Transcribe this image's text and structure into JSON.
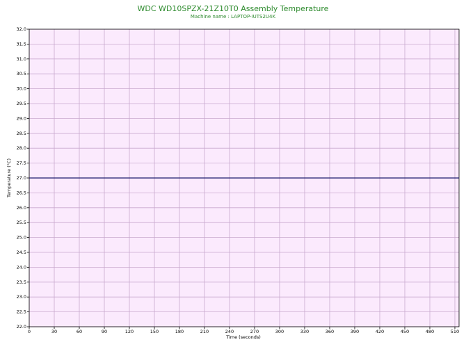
{
  "chart_data": {
    "type": "line",
    "title": "WDC WD10SPZX-21Z10T0 Assembly Temperature",
    "subtitle": "Machine name : LAPTOP-IUTS2U4K",
    "x_label": "Time (seconds)",
    "y_label": "Temperature (°C)",
    "x": [
      0,
      515
    ],
    "series": [
      {
        "name": "Assembly Temperature",
        "color": "#1c1c6e",
        "values": [
          27.0,
          27.0
        ]
      }
    ],
    "xlim": [
      0,
      515
    ],
    "xticks": [
      0,
      30,
      60,
      90,
      120,
      150,
      180,
      210,
      240,
      270,
      300,
      330,
      360,
      390,
      420,
      450,
      480,
      510
    ],
    "ylim": [
      22,
      32
    ],
    "yticks": [
      {
        "value": 22,
        "label": "22.0"
      },
      {
        "value": 22.5,
        "label": "22.5"
      },
      {
        "value": 23,
        "label": "23.0"
      },
      {
        "value": 23.5,
        "label": "23.5"
      },
      {
        "value": 24,
        "label": "24.0"
      },
      {
        "value": 24.5,
        "label": "24.5"
      },
      {
        "value": 25,
        "label": "25.0"
      },
      {
        "value": 25.5,
        "label": "25.5"
      },
      {
        "value": 26,
        "label": "26.0"
      },
      {
        "value": 26.5,
        "label": "26.5"
      },
      {
        "value": 27,
        "label": "27.0"
      },
      {
        "value": 27.5,
        "label": "27.5"
      },
      {
        "value": 28,
        "label": "28.0"
      },
      {
        "value": 28.5,
        "label": "28.5"
      },
      {
        "value": 29,
        "label": "29.0"
      },
      {
        "value": 29.5,
        "label": "29.5"
      },
      {
        "value": 30,
        "label": "30.0"
      },
      {
        "value": 30.5,
        "label": "30.5"
      },
      {
        "value": 31,
        "label": "31.0"
      },
      {
        "value": 31.5,
        "label": "31.5"
      },
      {
        "value": 32,
        "label": "32.0"
      }
    ],
    "grid": true,
    "background": "#fbeafd",
    "grid_color": "#c9a9cf",
    "title_color": "#2e8b2e"
  }
}
